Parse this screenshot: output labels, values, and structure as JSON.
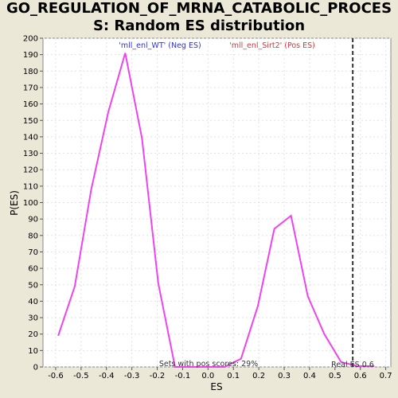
{
  "chart_data": {
    "type": "line",
    "title_lines": [
      "GO_REGULATION_OF_MRNA_CATABOLIC_PROCES",
      "S: Random ES distribution"
    ],
    "xlabel": "ES",
    "ylabel": "P(ES)",
    "xlim": [
      -0.65,
      0.72
    ],
    "ylim": [
      0,
      200
    ],
    "x_ticks": [
      -0.6,
      -0.5,
      -0.4,
      -0.3,
      -0.2,
      -0.1,
      0.0,
      0.1,
      0.2,
      0.3,
      0.4,
      0.5,
      0.6,
      0.7
    ],
    "x_tick_labels": [
      "-0.6",
      "-0.5",
      "-0.4",
      "-0.3",
      "-0.2",
      "-0.1",
      "0.0",
      "0.1",
      "0.2",
      "0.3",
      "0.4",
      "0.5",
      "0.6",
      "0.7"
    ],
    "y_ticks": [
      0,
      10,
      20,
      30,
      40,
      50,
      60,
      70,
      80,
      90,
      100,
      110,
      120,
      130,
      140,
      150,
      160,
      170,
      180,
      190,
      200
    ],
    "grid": true,
    "series": [
      {
        "color": "#ee44ee",
        "x": [
          -0.59,
          -0.525,
          -0.46,
          -0.393,
          -0.326,
          -0.26,
          -0.196,
          -0.13,
          -0.065,
          0.0,
          0.065,
          0.13,
          0.196,
          0.261,
          0.327,
          0.393,
          0.458,
          0.524,
          0.59,
          0.655
        ],
        "y": [
          19,
          49,
          108,
          155,
          191,
          139,
          51,
          0,
          0,
          0,
          0,
          5,
          37,
          84,
          92,
          43,
          20,
          3,
          0.5,
          0.5
        ]
      }
    ],
    "reference_line": {
      "x": 0.57,
      "style": "dashed",
      "color": "#333333"
    },
    "legend": {
      "neg_label": "'mll_enl_WT' (Neg ES)",
      "neg_color": "#3333cc",
      "pos_label": "'mll_enl_Sirt2' (Pos ES)",
      "pos_color": "#dd3333"
    },
    "annotations": {
      "pos_scores": "Sets with pos scores: 29%",
      "real_es": "Real ES 0.6"
    }
  }
}
